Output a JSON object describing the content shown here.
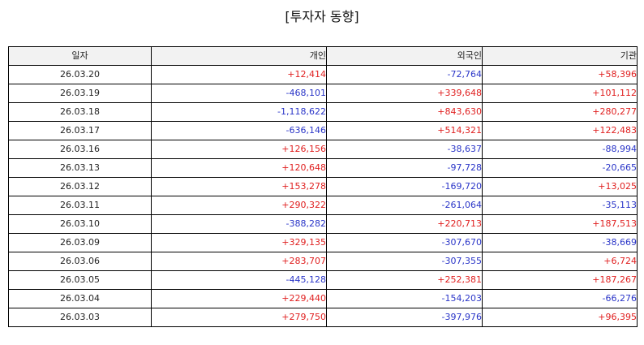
{
  "title": "[투자자 동향]",
  "colors": {
    "positive": "#e02020",
    "negative": "#2a35c8",
    "header_bg": "#f2f2f2"
  },
  "table": {
    "headers": [
      "일자",
      "개인",
      "외국인",
      "기관"
    ],
    "rows": [
      [
        "26.03.20",
        "+12,414",
        "-72,764",
        "+58,396"
      ],
      [
        "26.03.19",
        "-468,101",
        "+339,648",
        "+101,112"
      ],
      [
        "26.03.18",
        "-1,118,622",
        "+843,630",
        "+280,277"
      ],
      [
        "26.03.17",
        "-636,146",
        "+514,321",
        "+122,483"
      ],
      [
        "26.03.16",
        "+126,156",
        "-38,637",
        "-88,994"
      ],
      [
        "26.03.13",
        "+120,648",
        "-97,728",
        "-20,665"
      ],
      [
        "26.03.12",
        "+153,278",
        "-169,720",
        "+13,025"
      ],
      [
        "26.03.11",
        "+290,322",
        "-261,064",
        "-35,113"
      ],
      [
        "26.03.10",
        "-388,282",
        "+220,713",
        "+187,513"
      ],
      [
        "26.03.09",
        "+329,135",
        "-307,670",
        "-38,669"
      ],
      [
        "26.03.06",
        "+283,707",
        "-307,355",
        "+6,724"
      ],
      [
        "26.03.05",
        "-445,128",
        "+252,381",
        "+187,267"
      ],
      [
        "26.03.04",
        "+229,440",
        "-154,203",
        "-66,276"
      ],
      [
        "26.03.03",
        "+279,750",
        "-397,976",
        "+96,395"
      ]
    ]
  }
}
